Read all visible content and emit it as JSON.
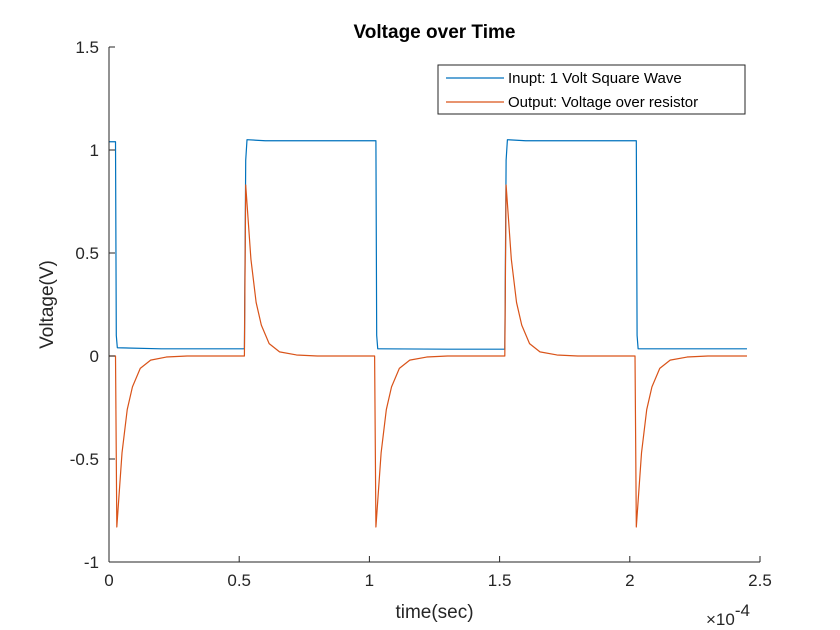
{
  "chart_data": {
    "type": "line",
    "title": "Voltage over Time",
    "xlabel": "time(sec)",
    "ylabel": "Voltage(V)",
    "x_multiplier_label": "×10",
    "x_multiplier_exponent": "-4",
    "xlim": [
      0,
      2.5
    ],
    "ylim": [
      -1,
      1.5
    ],
    "xticks": [
      0,
      0.5,
      1,
      1.5,
      2,
      2.5
    ],
    "xtick_labels": [
      "0",
      "0.5",
      "1",
      "1.5",
      "2",
      "2.5"
    ],
    "yticks": [
      -1,
      -0.5,
      0,
      0.5,
      1,
      1.5
    ],
    "ytick_labels": [
      "-1",
      "-0.5",
      "0",
      "0.5",
      "1",
      "1.5"
    ],
    "grid": false,
    "legend_position": "top-right",
    "series": [
      {
        "name": "Inupt: 1 Volt Square Wave",
        "color": "#0072bd",
        "points": [
          [
            0.0,
            1.04
          ],
          [
            0.025,
            1.04
          ],
          [
            0.028,
            0.1
          ],
          [
            0.032,
            0.04
          ],
          [
            0.2,
            0.035
          ],
          [
            0.5,
            0.035
          ],
          [
            0.52,
            0.035
          ],
          [
            0.525,
            0.95
          ],
          [
            0.53,
            1.05
          ],
          [
            0.6,
            1.045
          ],
          [
            1.0,
            1.045
          ],
          [
            1.025,
            1.045
          ],
          [
            1.028,
            0.1
          ],
          [
            1.032,
            0.035
          ],
          [
            1.3,
            0.033
          ],
          [
            1.52,
            0.033
          ],
          [
            1.525,
            0.95
          ],
          [
            1.53,
            1.05
          ],
          [
            1.6,
            1.045
          ],
          [
            2.0,
            1.045
          ],
          [
            2.025,
            1.045
          ],
          [
            2.028,
            0.1
          ],
          [
            2.032,
            0.035
          ],
          [
            2.3,
            0.035
          ],
          [
            2.45,
            0.035
          ]
        ]
      },
      {
        "name": "Output: Voltage over resistor",
        "color": "#d95319",
        "points": [
          [
            0.0,
            0.0
          ],
          [
            0.025,
            0.0
          ],
          [
            0.03,
            -0.83
          ],
          [
            0.05,
            -0.47
          ],
          [
            0.07,
            -0.26
          ],
          [
            0.09,
            -0.15
          ],
          [
            0.12,
            -0.06
          ],
          [
            0.16,
            -0.02
          ],
          [
            0.22,
            -0.005
          ],
          [
            0.3,
            0.0
          ],
          [
            0.52,
            0.0
          ],
          [
            0.525,
            0.83
          ],
          [
            0.545,
            0.47
          ],
          [
            0.565,
            0.26
          ],
          [
            0.585,
            0.15
          ],
          [
            0.615,
            0.06
          ],
          [
            0.655,
            0.02
          ],
          [
            0.72,
            0.005
          ],
          [
            0.8,
            0.0
          ],
          [
            1.02,
            0.0
          ],
          [
            1.025,
            -0.83
          ],
          [
            1.045,
            -0.47
          ],
          [
            1.065,
            -0.26
          ],
          [
            1.085,
            -0.15
          ],
          [
            1.115,
            -0.06
          ],
          [
            1.155,
            -0.02
          ],
          [
            1.22,
            -0.005
          ],
          [
            1.3,
            0.0
          ],
          [
            1.52,
            0.0
          ],
          [
            1.525,
            0.83
          ],
          [
            1.545,
            0.47
          ],
          [
            1.565,
            0.26
          ],
          [
            1.585,
            0.15
          ],
          [
            1.615,
            0.06
          ],
          [
            1.655,
            0.02
          ],
          [
            1.72,
            0.005
          ],
          [
            1.8,
            0.0
          ],
          [
            2.02,
            0.0
          ],
          [
            2.025,
            -0.83
          ],
          [
            2.045,
            -0.47
          ],
          [
            2.065,
            -0.26
          ],
          [
            2.085,
            -0.15
          ],
          [
            2.115,
            -0.06
          ],
          [
            2.155,
            -0.02
          ],
          [
            2.22,
            -0.005
          ],
          [
            2.3,
            0.0
          ],
          [
            2.45,
            0.0
          ]
        ]
      }
    ]
  }
}
